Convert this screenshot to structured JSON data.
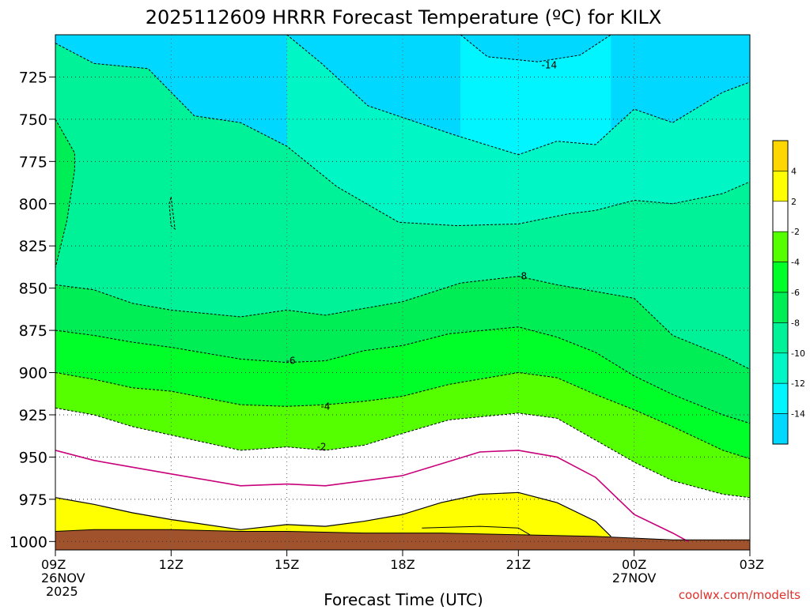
{
  "chart_data": {
    "type": "heatmap",
    "title": "2025112609 HRRR Forecast Temperature (ºC) for KILX",
    "xlabel": "Forecast Time (UTC)",
    "ylabel": "",
    "credit": "coolwx.com/modelts",
    "x_ticks": [
      {
        "hour": 0,
        "label": "09Z",
        "sub1": "26NOV",
        "sub2": "2025"
      },
      {
        "hour": 3,
        "label": "12Z"
      },
      {
        "hour": 6,
        "label": "15Z"
      },
      {
        "hour": 9,
        "label": "18Z"
      },
      {
        "hour": 12,
        "label": "21Z"
      },
      {
        "hour": 15,
        "label": "00Z",
        "sub1": "27NOV"
      },
      {
        "hour": 18,
        "label": "03Z"
      }
    ],
    "xlim": [
      0,
      18
    ],
    "y_ticks": [
      725,
      750,
      775,
      800,
      825,
      850,
      875,
      900,
      925,
      950,
      975,
      1000
    ],
    "ylim": [
      700,
      1005
    ],
    "colors": {
      "c_m16": "#00aaff",
      "c_m14": "#00d8ff",
      "c_m12": "#00f5ff",
      "c_m10": "#00f7c5",
      "c_m8": "#00f299",
      "c_m6": "#00ee55",
      "c_m4": "#00ff29",
      "c_m2": "#55ff00",
      "c_0": "#ffffff",
      "c_2": "#ffff00",
      "c_4": "#ffd700",
      "ground": "#a0522d",
      "freezing_line": "#c8007a"
    },
    "legend": {
      "labels": [
        "4",
        "2",
        "-2",
        "-4",
        "-6",
        "-8",
        "-10",
        "-12",
        "-14"
      ],
      "bins": [
        "c_4",
        "c_2",
        "c_0",
        "c_m2",
        "c_m4",
        "c_m6",
        "c_m8",
        "c_m10",
        "c_m12",
        "c_m14"
      ]
    },
    "isotherms": [
      {
        "value": -14,
        "label": "-14",
        "label_at": [
          12.8,
          718
        ],
        "style": "dashed",
        "points": [
          [
            10.5,
            700
          ],
          [
            11.2,
            713
          ],
          [
            12.5,
            716
          ],
          [
            13.6,
            712
          ],
          [
            14.4,
            700
          ]
        ]
      },
      {
        "value": -12,
        "label": "",
        "style": "dashed",
        "points": [
          [
            6.0,
            700
          ],
          [
            6.9,
            717
          ],
          [
            8.1,
            742
          ],
          [
            10.3,
            759
          ],
          [
            12.0,
            771
          ],
          [
            13.0,
            763
          ],
          [
            14.0,
            765
          ],
          [
            15.0,
            744
          ],
          [
            16.0,
            752
          ],
          [
            17.3,
            734
          ],
          [
            18,
            728
          ]
        ]
      },
      {
        "value": -10,
        "label": "",
        "style": "dashed",
        "points": [
          [
            0,
            705
          ],
          [
            1.0,
            717
          ],
          [
            2.4,
            720
          ],
          [
            3.6,
            748
          ],
          [
            4.8,
            752
          ],
          [
            6.0,
            766
          ],
          [
            7.3,
            790
          ],
          [
            8.9,
            811
          ],
          [
            10.4,
            813
          ],
          [
            12.0,
            812
          ],
          [
            13.3,
            806
          ],
          [
            14.0,
            804
          ],
          [
            15.0,
            798
          ],
          [
            16.0,
            800
          ],
          [
            17.3,
            794
          ],
          [
            18,
            787
          ]
        ]
      },
      {
        "value": -8,
        "label": "-8",
        "label_at": [
          12.1,
          843
        ],
        "style": "dashed",
        "points": [
          [
            0,
            848
          ],
          [
            1.0,
            851
          ],
          [
            2.0,
            859
          ],
          [
            3.0,
            863
          ],
          [
            4.8,
            867
          ],
          [
            6.0,
            863
          ],
          [
            7.0,
            866
          ],
          [
            8.0,
            862
          ],
          [
            9.0,
            858
          ],
          [
            10.5,
            847
          ],
          [
            12.0,
            843
          ],
          [
            13.0,
            848
          ],
          [
            14.0,
            852
          ],
          [
            15.0,
            856
          ],
          [
            16.0,
            878
          ],
          [
            17.3,
            890
          ],
          [
            18,
            898
          ]
        ]
      },
      {
        "value": -6,
        "label": "-6",
        "label_at": [
          6.1,
          893
        ],
        "style": "dashed",
        "points": [
          [
            0,
            875
          ],
          [
            1.0,
            878
          ],
          [
            2.0,
            882
          ],
          [
            3.0,
            885
          ],
          [
            4.8,
            892
          ],
          [
            6.0,
            894
          ],
          [
            7.0,
            893
          ],
          [
            8.0,
            887
          ],
          [
            9.0,
            884
          ],
          [
            10.2,
            877
          ],
          [
            12.0,
            873
          ],
          [
            13.0,
            879
          ],
          [
            14.0,
            888
          ],
          [
            15.0,
            902
          ],
          [
            16.0,
            913
          ],
          [
            17.3,
            925
          ],
          [
            18,
            930
          ]
        ]
      },
      {
        "value": -4,
        "label": "-4",
        "label_at": [
          7.0,
          920
        ],
        "style": "dashed",
        "points": [
          [
            0,
            900
          ],
          [
            1.0,
            904
          ],
          [
            2.0,
            909
          ],
          [
            3.0,
            911
          ],
          [
            4.8,
            919
          ],
          [
            6.0,
            920
          ],
          [
            7.0,
            919
          ],
          [
            8.0,
            917
          ],
          [
            9.0,
            914
          ],
          [
            10.2,
            907
          ],
          [
            12.0,
            900
          ],
          [
            13.0,
            903
          ],
          [
            14.0,
            913
          ],
          [
            15.0,
            922
          ],
          [
            16.0,
            932
          ],
          [
            17.3,
            946
          ],
          [
            18,
            951
          ]
        ]
      },
      {
        "value": -2,
        "label": "-2",
        "label_at": [
          6.9,
          944
        ],
        "style": "dashed",
        "points": [
          [
            0,
            921
          ],
          [
            1.0,
            925
          ],
          [
            2.0,
            932
          ],
          [
            3.0,
            937
          ],
          [
            4.8,
            946
          ],
          [
            6.0,
            944
          ],
          [
            7.0,
            946
          ],
          [
            8.0,
            943
          ],
          [
            9.0,
            936
          ],
          [
            10.2,
            928
          ],
          [
            12.0,
            924
          ],
          [
            13.0,
            927
          ],
          [
            14.0,
            940
          ],
          [
            15.0,
            953
          ],
          [
            16.0,
            964
          ],
          [
            17.3,
            972
          ],
          [
            18,
            974
          ]
        ]
      }
    ],
    "bands_left_to_right": [
      {
        "fill": "c_m12",
        "below": -14
      },
      {
        "fill": "c_m10",
        "below": -12
      },
      {
        "fill": "c_m8",
        "below": -10
      },
      {
        "fill": "c_m6",
        "below": -8
      },
      {
        "fill": "c_m4",
        "below": -6
      },
      {
        "fill": "c_m2",
        "below": -4
      },
      {
        "fill": "c_0",
        "below": -2
      }
    ],
    "freezing_line": [
      [
        0,
        946
      ],
      [
        1.0,
        952
      ],
      [
        2.0,
        956
      ],
      [
        3.0,
        960
      ],
      [
        4.8,
        967
      ],
      [
        6.0,
        966
      ],
      [
        7.0,
        967
      ],
      [
        8.0,
        964
      ],
      [
        9.0,
        961
      ],
      [
        10.0,
        954
      ],
      [
        11.0,
        947
      ],
      [
        12.0,
        946
      ],
      [
        13.0,
        950
      ],
      [
        14.0,
        962
      ],
      [
        15.0,
        984
      ],
      [
        16.0,
        995
      ],
      [
        16.4,
        1000
      ]
    ],
    "warm_layer_top": [
      [
        0,
        974
      ],
      [
        1.0,
        978
      ],
      [
        2.0,
        983
      ],
      [
        3.0,
        987
      ],
      [
        4.8,
        993
      ],
      [
        6.0,
        990
      ],
      [
        7.0,
        991
      ],
      [
        8.0,
        988
      ],
      [
        9.0,
        984
      ],
      [
        10.0,
        977
      ],
      [
        11.0,
        972
      ],
      [
        12.0,
        971
      ],
      [
        13.0,
        977
      ],
      [
        14.0,
        988
      ],
      [
        14.4,
        997
      ]
    ],
    "ground_top": [
      [
        0,
        994
      ],
      [
        1.0,
        993
      ],
      [
        2.0,
        993
      ],
      [
        3.0,
        993
      ],
      [
        4.8,
        994
      ],
      [
        6.0,
        994
      ],
      [
        8.0,
        995
      ],
      [
        10.0,
        995
      ],
      [
        12.0,
        996
      ],
      [
        14.0,
        997
      ],
      [
        16.0,
        999
      ],
      [
        18,
        999
      ]
    ],
    "surface_pressure": 1005,
    "closed_contours": [
      {
        "points": [
          [
            3.0,
            796
          ],
          [
            3.05,
            806
          ],
          [
            3.1,
            815
          ],
          [
            3.0,
            813
          ],
          [
            2.95,
            800
          ]
        ]
      },
      {
        "points": [
          [
            0,
            750
          ],
          [
            0.5,
            770
          ],
          [
            0.5,
            780
          ],
          [
            0.3,
            810
          ],
          [
            0,
            838
          ]
        ]
      }
    ]
  }
}
